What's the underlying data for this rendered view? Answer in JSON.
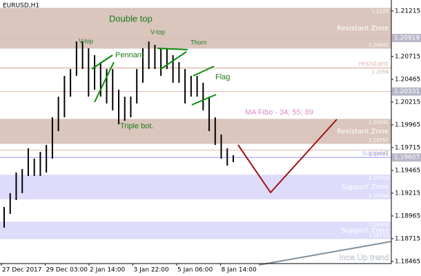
{
  "chart_data": {
    "type": "range-bar",
    "title": "EURUSD,H1",
    "bar_color": "#000000",
    "highs": [
      1.19063,
      1.19215,
      1.19442,
      1.1948,
      1.19707,
      1.19594,
      1.19669,
      1.19745,
      1.20048,
      1.20275,
      1.20503,
      1.20578,
      1.20881,
      1.20881,
      1.20806,
      1.2073,
      1.20654,
      1.20578,
      1.20578,
      1.20351,
      1.20275,
      1.20275,
      1.20578,
      1.20806,
      1.20881,
      1.20844,
      1.20806,
      1.20806,
      1.2073,
      1.20654,
      1.20578,
      1.20503,
      1.20503,
      1.20427,
      1.20275,
      1.20048,
      1.19859,
      1.19707,
      1.19631
    ],
    "lows": [
      1.18836,
      1.18988,
      1.19139,
      1.19215,
      1.19404,
      1.19404,
      1.19404,
      1.19442,
      1.19594,
      1.19897,
      1.20048,
      1.20275,
      1.20503,
      1.20578,
      1.20275,
      1.20351,
      1.20275,
      1.202,
      1.20124,
      1.19972,
      1.2001,
      1.20048,
      1.202,
      1.20427,
      1.20578,
      1.20578,
      1.20503,
      1.20578,
      1.20427,
      1.20427,
      1.202,
      1.20275,
      1.20275,
      1.20124,
      1.19897,
      1.19745,
      1.19594,
      1.19518,
      1.19556
    ],
    "x_labels": [
      "27 Dec 2017",
      "29 Dec 03:00",
      "2 Jan 14:00",
      "3 Jan 22:00",
      "5 Jan 06:00",
      "8 Jan 14:00"
    ],
    "ylim": [
      1.18442,
      1.21336
    ],
    "yticks": [
      1.21215,
      1.20715,
      1.20465,
      1.20215,
      1.19965,
      1.19715,
      1.19465,
      1.19215,
      1.18965,
      1.18715,
      1.18465
    ],
    "zones": [
      {
        "label": "Resistant Zone",
        "top": 1.2125,
        "bottom": 1.20802,
        "color": "#dac6bd"
      },
      {
        "label": "Resistant Zone",
        "top": 1.20031,
        "bottom": 1.19757,
        "color": "#dac6bd"
      },
      {
        "label": "Support Zone",
        "top": 1.19418,
        "bottom": 1.19148,
        "color": "#dedcfa"
      },
      {
        "label": "Support Zone",
        "top": 1.18903,
        "bottom": 1.18711,
        "color": "#dedcfa"
      }
    ],
    "levels": [
      {
        "label": "resistant",
        "value": 1.2059,
        "color": "#e3b7ae"
      },
      {
        "value": 1.20919,
        "color": "#e3b7ae"
      },
      {
        "value": 1.20331,
        "color": "#e3b7ae"
      },
      {
        "value": 1.19688,
        "color": "#e3b7ae"
      },
      {
        "label": "support",
        "value": 1.19607,
        "color": "#b4b4ff"
      }
    ],
    "axis_boxes": [
      1.20919,
      1.20331,
      1.19607
    ],
    "annotations": [
      "Double top",
      "V-top",
      "V-top",
      "Pennant",
      "Thorn",
      "Flag",
      "Triple bot.",
      "MA Fibo - 34; 55; 89",
      "loca Up trend"
    ]
  }
}
